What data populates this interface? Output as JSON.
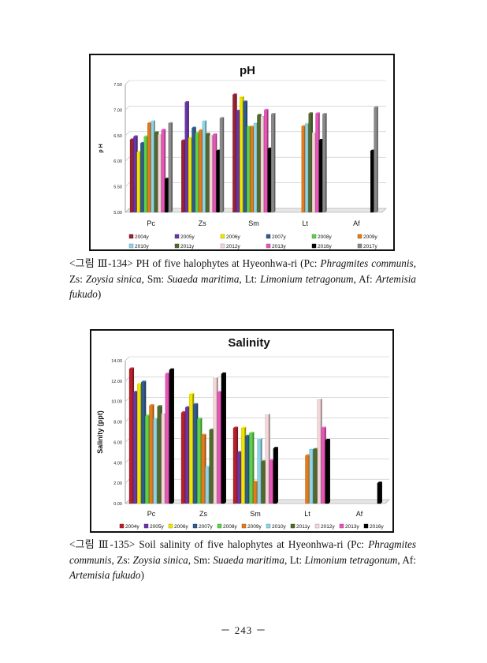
{
  "chart_data": [
    {
      "type": "bar",
      "title": "pH",
      "xlabel": "",
      "ylabel": "p H",
      "ylim": [
        5.0,
        7.5
      ],
      "yticks": [
        "5.00",
        "5.50",
        "6.00",
        "6.50",
        "7.00",
        "7.50"
      ],
      "categories": [
        "Pc",
        "Zs",
        "Sm",
        "Lt",
        "Af"
      ],
      "legend_position": "bottom",
      "series": [
        {
          "name": "2004y",
          "color": "#9b2232",
          "values": [
            6.42,
            6.4,
            7.3,
            null,
            null
          ]
        },
        {
          "name": "2005y",
          "color": "#6a35a8",
          "values": [
            6.48,
            7.15,
            6.98,
            null,
            null
          ]
        },
        {
          "name": "2006y",
          "color": "#f2e600",
          "values": [
            6.18,
            6.45,
            7.25,
            null,
            null
          ]
        },
        {
          "name": "2007y",
          "color": "#2f5b8f",
          "values": [
            6.35,
            6.65,
            7.16,
            null,
            null
          ]
        },
        {
          "name": "2008y",
          "color": "#5ed14a",
          "values": [
            6.48,
            6.55,
            6.67,
            null,
            null
          ]
        },
        {
          "name": "2009y",
          "color": "#e57a1a",
          "values": [
            6.74,
            6.6,
            6.67,
            6.68,
            null
          ]
        },
        {
          "name": "2010y",
          "color": "#8ed3e6",
          "values": [
            6.78,
            6.78,
            6.74,
            6.73,
            null
          ]
        },
        {
          "name": "2011y",
          "color": "#4f6a2a",
          "values": [
            6.56,
            6.53,
            6.9,
            6.93,
            null
          ]
        },
        {
          "name": "2012y",
          "color": "#f4d6d8",
          "values": [
            6.52,
            6.5,
            6.88,
            6.55,
            null
          ]
        },
        {
          "name": "2013y",
          "color": "#e855b8",
          "values": [
            6.61,
            6.52,
            7.0,
            6.93,
            null
          ]
        },
        {
          "name": "2016y",
          "color": "#000000",
          "values": [
            5.65,
            6.2,
            6.24,
            6.41,
            6.2
          ]
        },
        {
          "name": "2017y",
          "color": "#8a8a8a",
          "values": [
            6.74,
            6.84,
            6.92,
            6.92,
            7.05
          ]
        }
      ]
    },
    {
      "type": "bar",
      "title": "Salinity",
      "xlabel": "",
      "ylabel": "Salinity (ppt)",
      "ylim": [
        0,
        14
      ],
      "yticks": [
        "0.00",
        "2.00",
        "4.00",
        "6.00",
        "8.00",
        "10.00",
        "12.00",
        "14.00"
      ],
      "categories": [
        "Pc",
        "Zs",
        "Sm",
        "Lt",
        "Af"
      ],
      "legend_position": "bottom",
      "series": [
        {
          "name": "2004y",
          "color": "#b5202a",
          "values": [
            13.2,
            8.9,
            7.4,
            null,
            null
          ]
        },
        {
          "name": "2005y",
          "color": "#6a35a8",
          "values": [
            10.9,
            9.4,
            5.0,
            null,
            null
          ]
        },
        {
          "name": "2006y",
          "color": "#f2e600",
          "values": [
            11.7,
            10.7,
            7.4,
            null,
            null
          ]
        },
        {
          "name": "2007y",
          "color": "#2f5b8f",
          "values": [
            11.9,
            9.7,
            6.6,
            null,
            null
          ]
        },
        {
          "name": "2008y",
          "color": "#5ed14a",
          "values": [
            8.6,
            8.3,
            6.9,
            null,
            null
          ]
        },
        {
          "name": "2009y",
          "color": "#e57a1a",
          "values": [
            9.6,
            6.7,
            2.1,
            4.7,
            null
          ]
        },
        {
          "name": "2010y",
          "color": "#8ed3e6",
          "values": [
            8.3,
            3.6,
            6.3,
            5.3,
            null
          ]
        },
        {
          "name": "2011y",
          "color": "#4f6a2a",
          "values": [
            9.5,
            7.2,
            4.1,
            5.3,
            null
          ]
        },
        {
          "name": "2012y",
          "color": "#f4d6d8",
          "values": [
            8.8,
            12.3,
            8.7,
            10.2,
            null
          ]
        },
        {
          "name": "2013y",
          "color": "#e855b8",
          "values": [
            12.7,
            10.9,
            4.2,
            7.4,
            null
          ]
        },
        {
          "name": "2016y",
          "color": "#000000",
          "values": [
            13.1,
            12.7,
            5.4,
            6.2,
            2.0
          ]
        }
      ]
    }
  ],
  "captions": {
    "fig134": {
      "prefix": "<그림 Ⅲ-134> PH of five halophytes at Hyeonhwa-ri (Pc: ",
      "pc": "Phragmites communis",
      "zs_label": ", Zs: ",
      "zs": "Zoysia sinica",
      "sm_label": ", Sm: ",
      "sm": "Suaeda maritima",
      "lt_label": ", Lt: ",
      "lt": "Limonium tetragonum",
      "af_label": ", Af: ",
      "af": "Artemisia fukudo",
      "suffix": ")"
    },
    "fig135": {
      "prefix": "<그림 Ⅲ-135> Soil salinity of five halophytes at Hyeonhwa-ri (Pc: ",
      "pc": "Phragmites communis",
      "zs_label": ", Zs: ",
      "zs": "Zoysia sinica",
      "sm_label": ", Sm: ",
      "sm": "Suaeda maritima",
      "lt_label": ", Lt: ",
      "lt": "Limonium tetragonum",
      "af_label": ", Af: ",
      "af": "Artemisia fukudo",
      "suffix": ")"
    }
  },
  "page_number": "－ 243 －"
}
